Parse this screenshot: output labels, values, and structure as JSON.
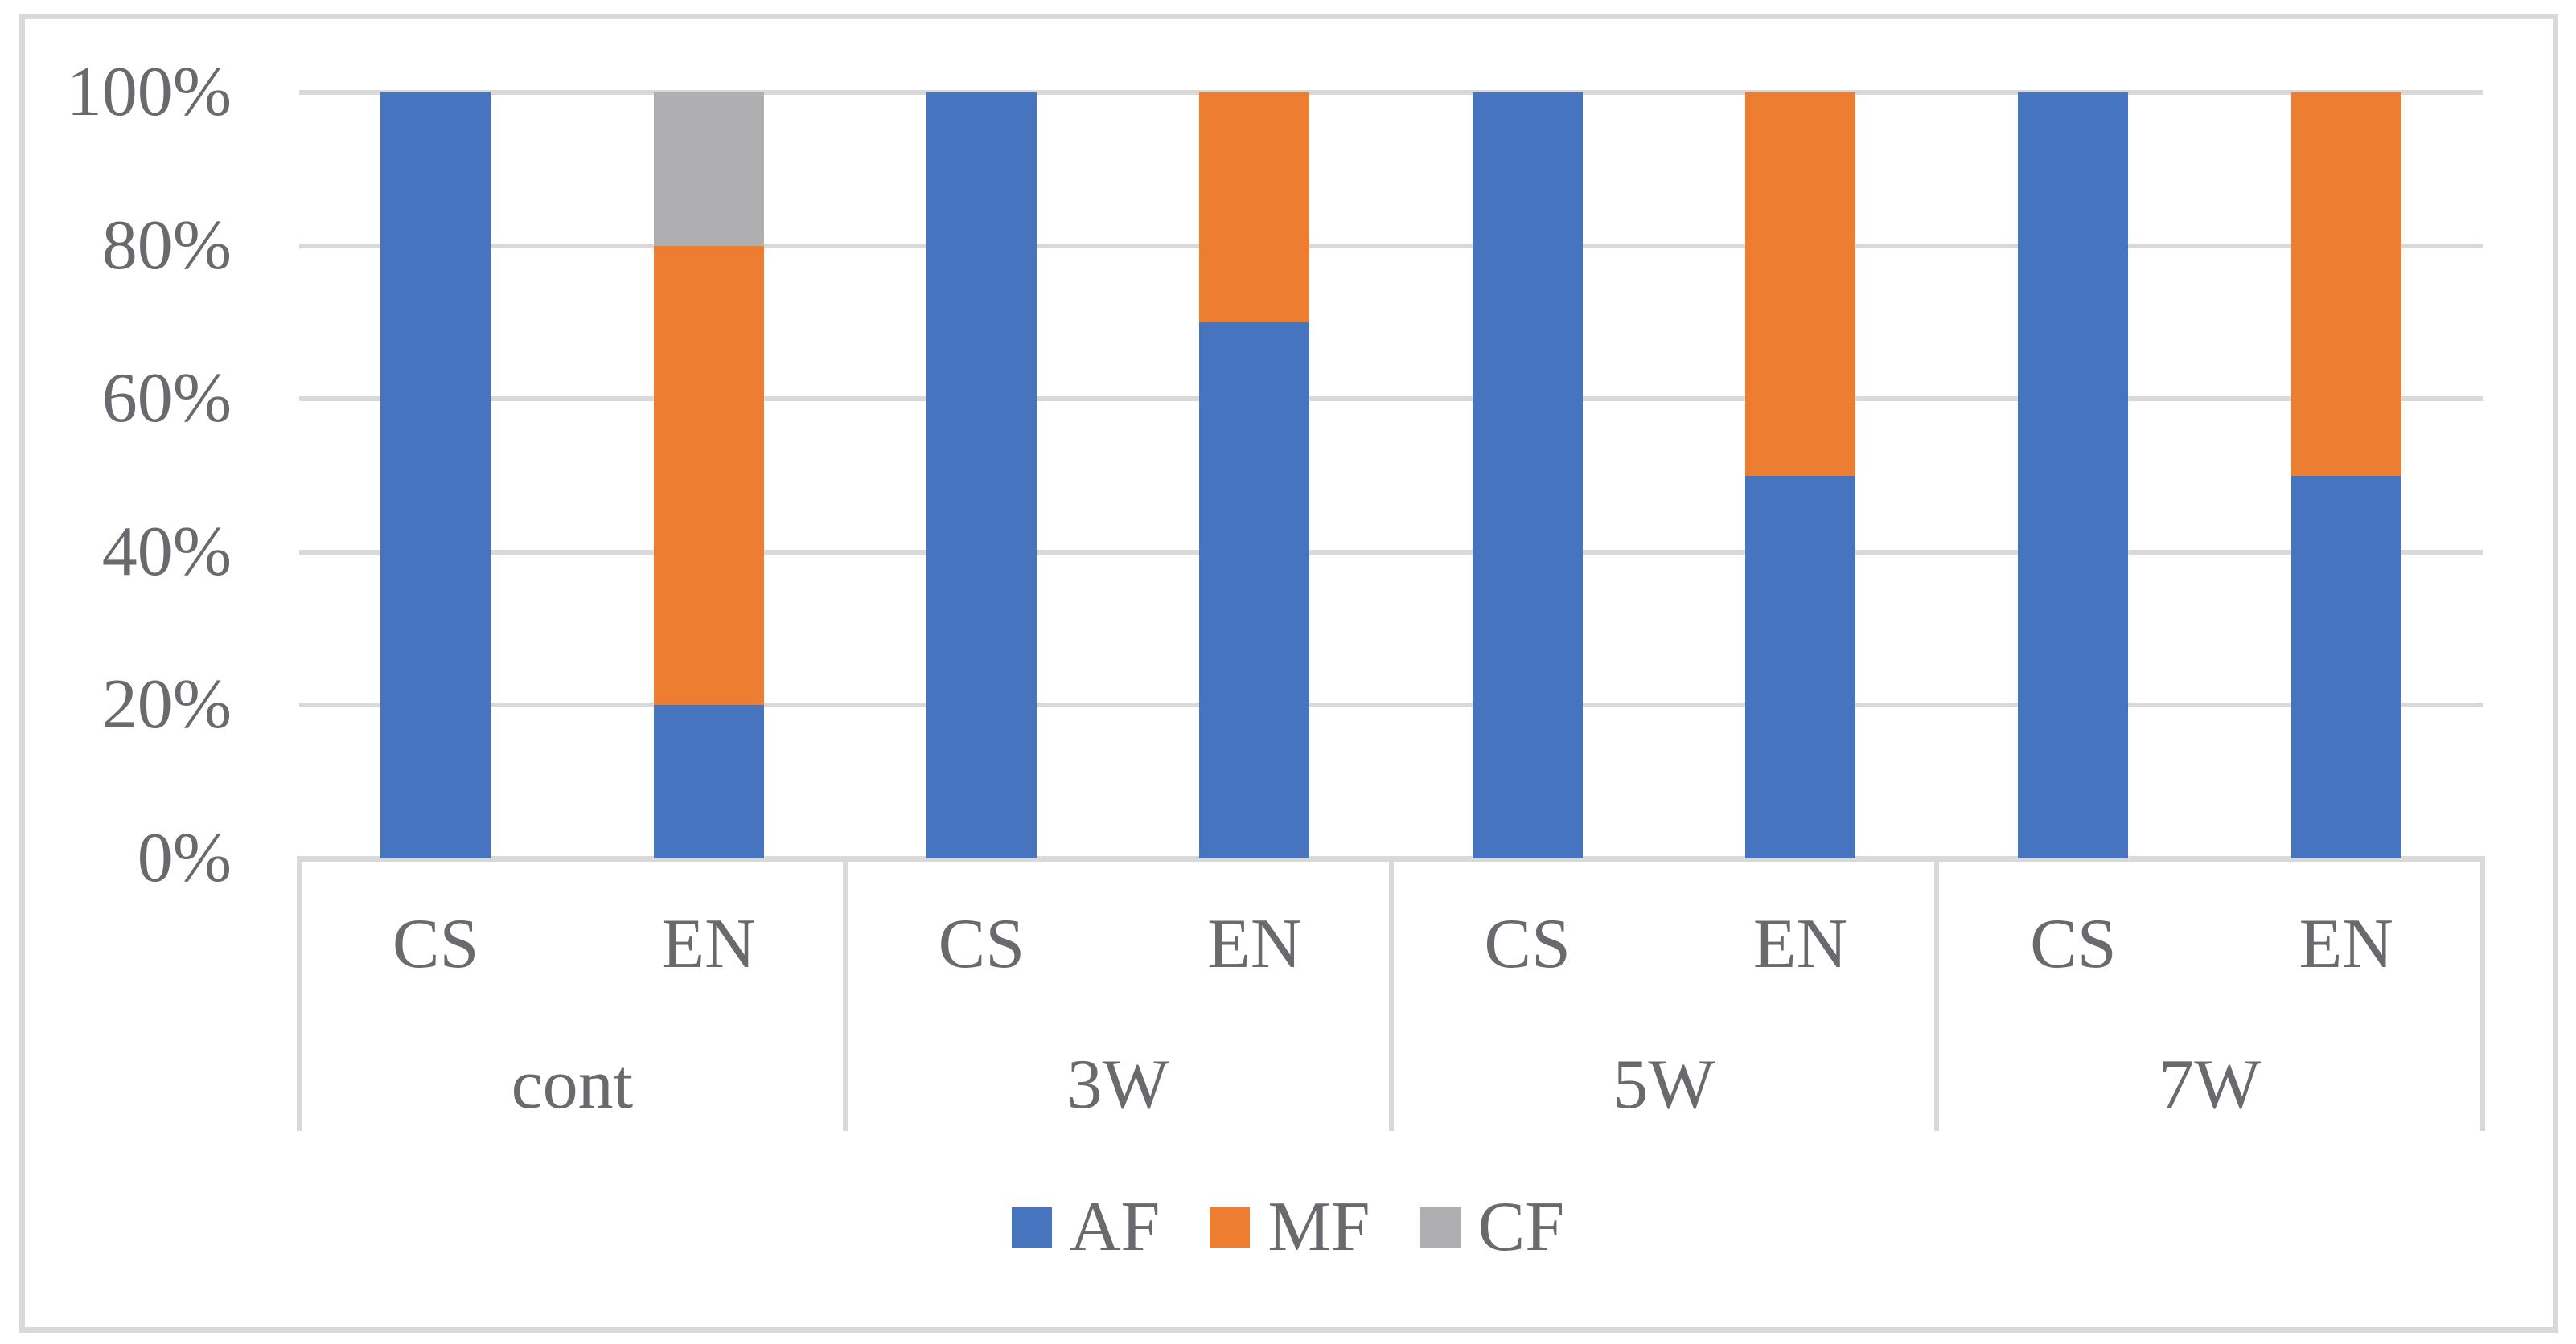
{
  "chart_data": {
    "type": "bar",
    "subtype": "stacked-100-percent-column",
    "title": "",
    "xlabel": "",
    "ylabel": "",
    "ylim": [
      0,
      100
    ],
    "grid": true,
    "legend_position": "bottom",
    "y_ticks": [
      "0%",
      "20%",
      "40%",
      "60%",
      "80%",
      "100%"
    ],
    "group_labels": [
      "cont",
      "3W",
      "5W",
      "7W"
    ],
    "categories": [
      "CS",
      "EN",
      "CS",
      "EN",
      "CS",
      "EN",
      "CS",
      "EN"
    ],
    "series": [
      {
        "name": "AF",
        "color": "#4674be",
        "values": [
          100,
          20,
          100,
          70,
          100,
          50,
          100,
          50
        ]
      },
      {
        "name": "MF",
        "color": "#ed7d31",
        "values": [
          0,
          60,
          0,
          30,
          0,
          50,
          0,
          50
        ]
      },
      {
        "name": "CF",
        "color": "#afafb2",
        "values": [
          0,
          20,
          0,
          0,
          0,
          0,
          0,
          0
        ]
      }
    ],
    "colors": {
      "grid": "#d9d9d9",
      "frame": "#d9d9d9",
      "axis_text": "#6a6a6e",
      "background": "#ffffff"
    }
  }
}
